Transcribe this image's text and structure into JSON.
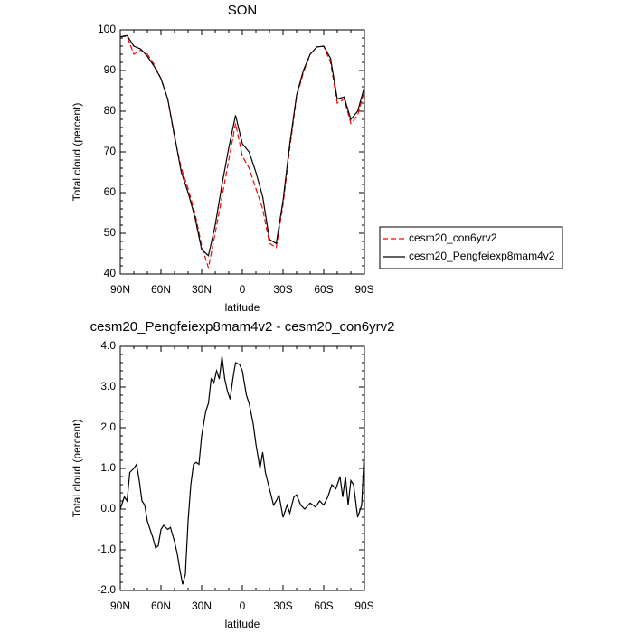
{
  "chart_data": [
    {
      "type": "line",
      "title": "SON",
      "xlabel": "latitude",
      "ylabel": "Total cloud (percent)",
      "x": [
        90,
        85,
        80,
        75,
        70,
        65,
        60,
        55,
        50,
        45,
        40,
        35,
        30,
        25,
        20,
        15,
        10,
        5,
        0,
        -5,
        -10,
        -15,
        -20,
        -25,
        -30,
        -35,
        -40,
        -45,
        -50,
        -55,
        -60,
        -65,
        -70,
        -75,
        -80,
        -85,
        -90
      ],
      "series": [
        {
          "name": "cesm20_con6yrv2",
          "color": "#ff0000",
          "style": "dashed",
          "values": [
            98.3,
            98.4,
            94,
            95,
            94,
            91.5,
            88,
            83,
            73.5,
            66,
            61,
            55,
            47,
            41.5,
            50,
            59,
            68,
            77,
            69,
            66,
            61,
            56,
            47.5,
            46.5,
            57,
            71,
            83.5,
            89.5,
            94,
            95.8,
            96,
            92,
            82,
            83,
            77,
            79,
            85
          ]
        },
        {
          "name": "cesm20_Pengfeiexp8mam4v2",
          "color": "#000000",
          "style": "solid",
          "values": [
            98.3,
            98.6,
            96,
            95.3,
            93.5,
            91,
            88,
            83,
            74,
            65,
            60,
            54,
            46,
            44.5,
            52,
            62,
            71,
            79,
            72,
            70,
            65,
            59,
            48.5,
            47.5,
            58,
            72,
            84,
            90,
            94,
            95.8,
            96,
            93,
            83,
            83.5,
            78,
            80,
            86
          ]
        }
      ],
      "xlim": [
        90,
        -90
      ],
      "xticks": [
        {
          "value": 90,
          "label": "90N"
        },
        {
          "value": 60,
          "label": "60N"
        },
        {
          "value": 30,
          "label": "30N"
        },
        0,
        {
          "value": -30,
          "label": "30S"
        },
        {
          "value": -60,
          "label": "60S"
        },
        {
          "value": -90,
          "label": "90S"
        }
      ],
      "ylim": [
        40,
        100
      ],
      "yticks": [
        40,
        50,
        60,
        70,
        80,
        90,
        100
      ],
      "legend": "outside-right"
    },
    {
      "type": "line",
      "title": "cesm20_Pengfeiexp8mam4v2 - cesm20_con6yrv2",
      "xlabel": "latitude",
      "ylabel": "Total cloud (percent)",
      "x": [
        90,
        87,
        85,
        83,
        80,
        78,
        76,
        74,
        72,
        70,
        66,
        64,
        62,
        60,
        58,
        55,
        53,
        50,
        48,
        46,
        44,
        42,
        40,
        38,
        36,
        34,
        32,
        30,
        27,
        25,
        23,
        21,
        19,
        17,
        15,
        13,
        11,
        9,
        7,
        5,
        2,
        0,
        -3,
        -5,
        -8,
        -10,
        -13,
        -15,
        -17,
        -20,
        -23,
        -25,
        -27,
        -30,
        -33,
        -35,
        -38,
        -40,
        -43,
        -46,
        -50,
        -54,
        -57,
        -60,
        -63,
        -66,
        -69,
        -72,
        -74,
        -76,
        -78,
        -80,
        -82,
        -85,
        -88,
        -90
      ],
      "values": [
        0.0,
        0.3,
        0.2,
        0.9,
        1.0,
        1.1,
        0.7,
        0.2,
        0.1,
        -0.3,
        -0.7,
        -0.95,
        -0.9,
        -0.5,
        -0.4,
        -0.5,
        -0.45,
        -0.8,
        -1.1,
        -1.5,
        -1.85,
        -1.6,
        -0.3,
        0.6,
        1.1,
        1.15,
        1.1,
        1.8,
        2.4,
        2.6,
        3.2,
        3.1,
        3.4,
        3.2,
        3.75,
        3.2,
        2.9,
        2.7,
        3.2,
        3.6,
        3.55,
        3.4,
        2.8,
        2.6,
        2.1,
        1.6,
        1.0,
        1.4,
        0.9,
        0.5,
        0.1,
        0.2,
        0.35,
        -0.2,
        0.1,
        -0.1,
        0.3,
        0.35,
        0.1,
        0.0,
        0.15,
        0.05,
        0.2,
        0.1,
        0.3,
        0.6,
        0.5,
        0.8,
        0.3,
        0.8,
        0.1,
        0.7,
        0.6,
        -0.2,
        0.1,
        1.5
      ],
      "color": "#000000",
      "xlim": [
        90,
        -90
      ],
      "xticks": [
        {
          "value": 90,
          "label": "90N"
        },
        {
          "value": 60,
          "label": "60N"
        },
        {
          "value": 30,
          "label": "30N"
        },
        0,
        {
          "value": -30,
          "label": "30S"
        },
        {
          "value": -60,
          "label": "60S"
        },
        {
          "value": -90,
          "label": "90S"
        }
      ],
      "ylim": [
        -2,
        4
      ],
      "yticks": [
        {
          "value": -2,
          "label": "-2.0"
        },
        {
          "value": -1,
          "label": "-1.0"
        },
        {
          "value": 0,
          "label": "0.0"
        },
        {
          "value": 1,
          "label": "1.0"
        },
        {
          "value": 2,
          "label": "2.0"
        },
        {
          "value": 3,
          "label": "3.0"
        },
        {
          "value": 4,
          "label": "4.0"
        }
      ]
    }
  ]
}
